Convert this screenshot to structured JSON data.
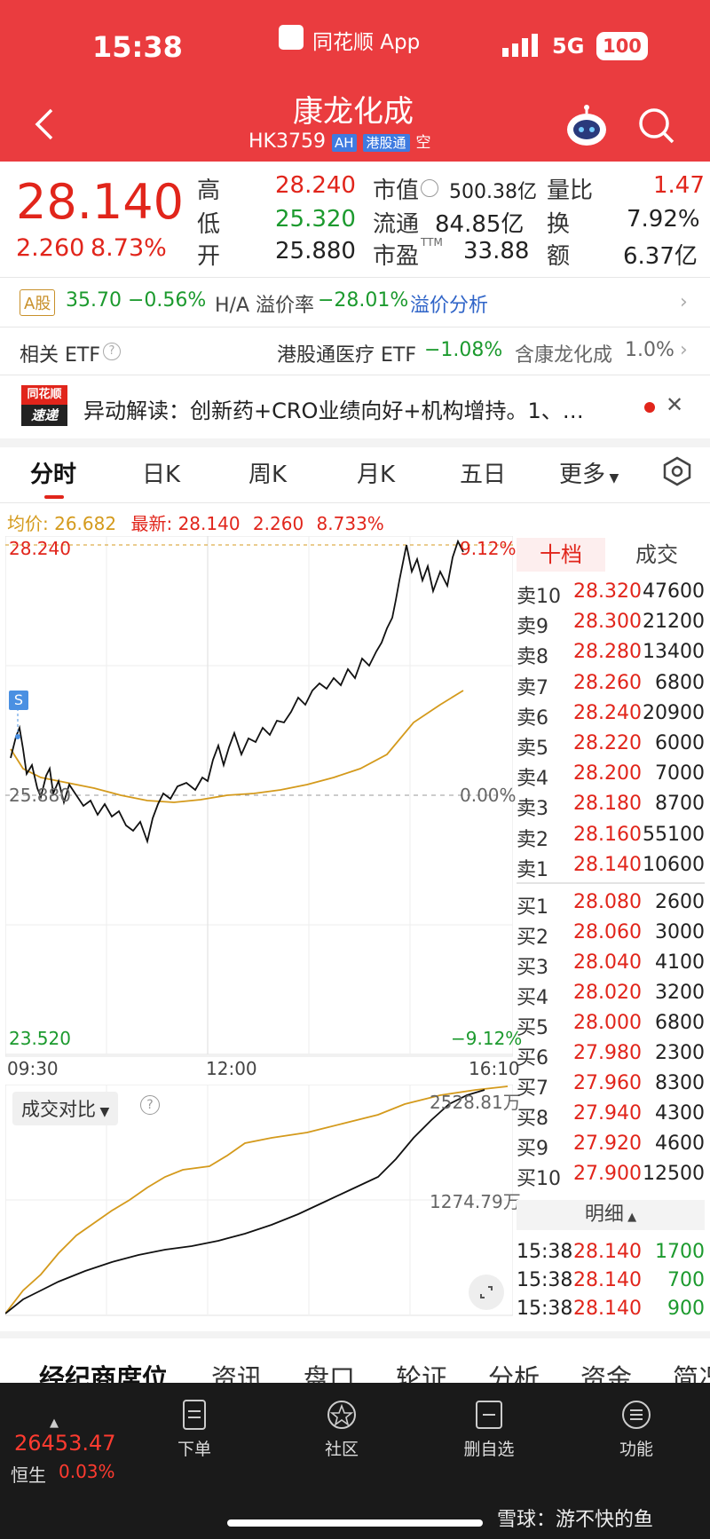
{
  "status": {
    "time": "15:38",
    "app": "同花顺 App",
    "network": "5G",
    "battery": "100"
  },
  "header": {
    "title": "康龙化成",
    "code": "HK3759",
    "badge_ah": "AH",
    "badge_hk": "港股通",
    "short": "空"
  },
  "quote": {
    "price": "28.140",
    "change": "2.260",
    "change_pct": "8.73%",
    "high_label": "高",
    "high": "28.240",
    "low_label": "低",
    "low": "25.320",
    "open_label": "开",
    "open": "25.880",
    "mcap_label": "市值",
    "mcap": "500.38亿",
    "float_label": "流通",
    "float": "84.85亿",
    "pe_label": "市盈",
    "pe_sup": "TTM",
    "pe": "33.88",
    "volratio_label": "量比",
    "volratio": "1.47",
    "turnover_label": "换",
    "turnover": "7.92%",
    "amount_label": "额",
    "amount": "6.37亿"
  },
  "ashare": {
    "badge": "A股",
    "price": "35.70",
    "change": "−0.56%",
    "premium_label": "H/A 溢价率",
    "premium": "−28.01%",
    "analysis": "溢价分析"
  },
  "etf": {
    "label": "相关 ETF",
    "name": "港股通医疗 ETF",
    "change": "−1.08%",
    "holding_label": "含康龙化成",
    "holding": "1.0%"
  },
  "news": {
    "logo_top": "同花顺",
    "logo_bottom": "速递",
    "text": "异动解读：创新药+CRO业绩向好+机构增持。1、…"
  },
  "chart_tabs": [
    "分时",
    "日K",
    "周K",
    "月K",
    "五日",
    "更多"
  ],
  "avg_line": {
    "avg_label": "均价:",
    "avg": "26.682",
    "latest_label": "最新:",
    "latest": "28.140",
    "change": "2.260",
    "pct": "8.733%"
  },
  "intraday": {
    "top_price": "28.240",
    "top_pct": "9.12%",
    "mid_price": "25.880",
    "mid_pct": "0.00%",
    "bottom_price": "23.520",
    "bottom_pct": "−9.12%",
    "time_start": "09:30",
    "time_mid": "12:00",
    "time_end": "16:10",
    "marker": "S"
  },
  "volume_compare": {
    "label": "成交对比",
    "top_value": "2528.81万",
    "mid_value": "1274.79万"
  },
  "book_tabs": {
    "depth": "十档",
    "trades": "成交"
  },
  "asks": [
    {
      "label": "卖10",
      "price": "28.320",
      "vol": "47600"
    },
    {
      "label": "卖9",
      "price": "28.300",
      "vol": "21200"
    },
    {
      "label": "卖8",
      "price": "28.280",
      "vol": "13400"
    },
    {
      "label": "卖7",
      "price": "28.260",
      "vol": "6800"
    },
    {
      "label": "卖6",
      "price": "28.240",
      "vol": "20900"
    },
    {
      "label": "卖5",
      "price": "28.220",
      "vol": "6000"
    },
    {
      "label": "卖4",
      "price": "28.200",
      "vol": "7000"
    },
    {
      "label": "卖3",
      "price": "28.180",
      "vol": "8700"
    },
    {
      "label": "卖2",
      "price": "28.160",
      "vol": "55100"
    },
    {
      "label": "卖1",
      "price": "28.140",
      "vol": "10600"
    }
  ],
  "bids": [
    {
      "label": "买1",
      "price": "28.080",
      "vol": "2600"
    },
    {
      "label": "买2",
      "price": "28.060",
      "vol": "3000"
    },
    {
      "label": "买3",
      "price": "28.040",
      "vol": "4100"
    },
    {
      "label": "买4",
      "price": "28.020",
      "vol": "3200"
    },
    {
      "label": "买5",
      "price": "28.000",
      "vol": "6800"
    },
    {
      "label": "买6",
      "price": "27.980",
      "vol": "2300"
    },
    {
      "label": "买7",
      "price": "27.960",
      "vol": "8300"
    },
    {
      "label": "买8",
      "price": "27.940",
      "vol": "4300"
    },
    {
      "label": "买9",
      "price": "27.920",
      "vol": "4600"
    },
    {
      "label": "买10",
      "price": "27.900",
      "vol": "12500"
    }
  ],
  "detail": {
    "label": "明细",
    "trades": [
      {
        "time": "15:38",
        "price": "28.140",
        "vol": "1700"
      },
      {
        "time": "15:38",
        "price": "28.140",
        "vol": "700"
      },
      {
        "time": "15:38",
        "price": "28.140",
        "vol": "900"
      }
    ]
  },
  "sub_tabs": [
    "经纪商席位",
    "资讯",
    "盘口",
    "轮证",
    "分析",
    "资金",
    "简况"
  ],
  "bottom_nav": {
    "index_value": "26453.47",
    "index_name": "恒生",
    "index_pct": "0.03%",
    "items": [
      "下单",
      "社区",
      "删自选",
      "功能"
    ],
    "watermark": "雪球：游不快的鱼"
  }
}
